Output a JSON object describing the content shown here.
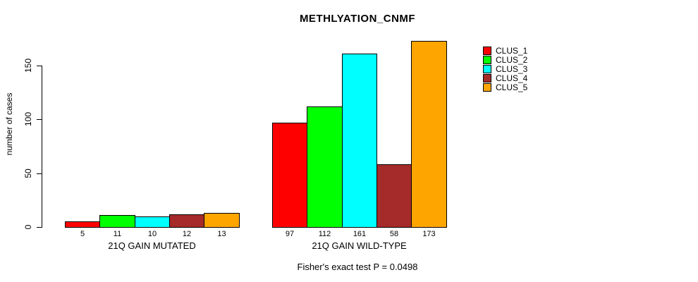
{
  "title": "METHLYATION_CNMF",
  "y_axis_label": "number of cases",
  "footer": "Fisher's exact test P = 0.0498",
  "legend": {
    "items": [
      {
        "label": "CLUS_1",
        "color": "#FF0000"
      },
      {
        "label": "CLUS_2",
        "color": "#00FF00"
      },
      {
        "label": "CLUS_3",
        "color": "#00FFFF"
      },
      {
        "label": "CLUS_4",
        "color": "#A52A2A"
      },
      {
        "label": "CLUS_5",
        "color": "#FFA500"
      }
    ]
  },
  "chart_data": {
    "type": "bar",
    "title": "METHLYATION_CNMF",
    "ylabel": "number of cases",
    "ylim": [
      0,
      175
    ],
    "yticks": [
      0,
      50,
      100,
      150
    ],
    "grid": false,
    "legend_position": "right",
    "series": [
      "CLUS_1",
      "CLUS_2",
      "CLUS_3",
      "CLUS_4",
      "CLUS_5"
    ],
    "colors": [
      "#FF0000",
      "#00FF00",
      "#00FFFF",
      "#A52A2A",
      "#FFA500"
    ],
    "groups": [
      {
        "label": "21Q GAIN MUTATED",
        "values": [
          5,
          11,
          10,
          12,
          13
        ]
      },
      {
        "label": "21Q GAIN WILD-TYPE",
        "values": [
          97,
          112,
          161,
          58,
          173
        ]
      }
    ],
    "annotation": "Fisher's exact test P = 0.0498"
  }
}
